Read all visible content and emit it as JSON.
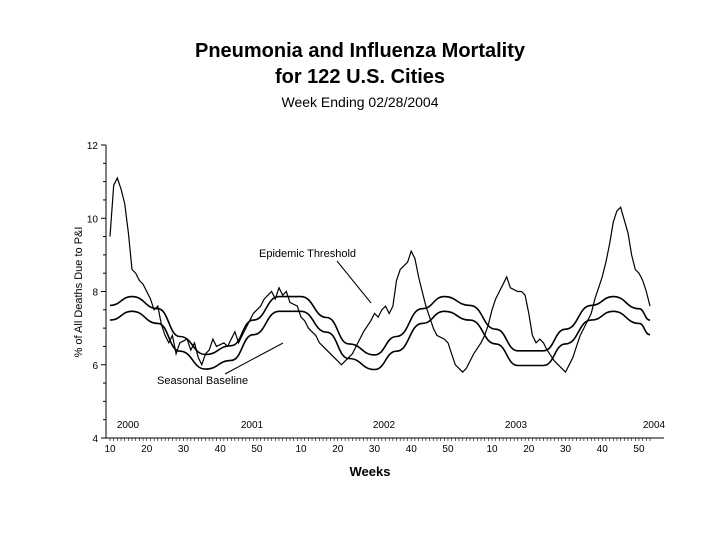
{
  "chart_data": {
    "type": "line",
    "title_line1": "Pneumonia and Influenza Mortality",
    "title_line2": "for 122 U.S. Cities",
    "subtitle": "Week Ending 02/28/2004",
    "xlabel": "Weeks",
    "ylabel": "% of All Deaths Due to P&I",
    "ylim": [
      4,
      12
    ],
    "y_ticks": [
      4,
      6,
      8,
      10,
      12
    ],
    "year_labels": [
      "2000",
      "2001",
      "2002",
      "2003",
      "2004"
    ],
    "week_ticks": [
      "10",
      "20",
      "30",
      "40",
      "50"
    ],
    "annotations": {
      "threshold": "Epidemic Threshold",
      "baseline": "Seasonal Baseline"
    },
    "series": [
      {
        "values": [
          [
            1,
            9.5
          ],
          [
            2,
            10.9
          ],
          [
            3,
            11.1
          ],
          [
            4,
            10.8
          ],
          [
            5,
            10.4
          ],
          [
            6,
            9.6
          ],
          [
            7,
            8.6
          ],
          [
            8,
            8.5
          ],
          [
            9,
            8.3
          ],
          [
            10,
            8.2
          ],
          [
            12,
            7.8
          ],
          [
            13,
            7.5
          ],
          [
            14,
            7.6
          ],
          [
            15,
            7.1
          ],
          [
            16,
            6.8
          ],
          [
            17,
            6.6
          ],
          [
            18,
            6.8
          ],
          [
            19,
            6.3
          ],
          [
            20,
            6.6
          ],
          [
            22,
            6.7
          ],
          [
            23,
            6.4
          ],
          [
            24,
            6.6
          ],
          [
            25,
            6.2
          ],
          [
            26,
            6.0
          ],
          [
            27,
            6.3
          ],
          [
            28,
            6.4
          ],
          [
            29,
            6.7
          ],
          [
            30,
            6.5
          ],
          [
            32,
            6.6
          ],
          [
            33,
            6.5
          ],
          [
            34,
            6.7
          ],
          [
            35,
            6.9
          ],
          [
            36,
            6.6
          ],
          [
            37,
            6.8
          ],
          [
            38,
            7.0
          ],
          [
            39,
            7.2
          ],
          [
            40,
            7.4
          ],
          [
            42,
            7.6
          ],
          [
            43,
            7.8
          ],
          [
            44,
            7.9
          ],
          [
            45,
            8.0
          ],
          [
            46,
            7.8
          ],
          [
            47,
            8.1
          ],
          [
            48,
            7.9
          ],
          [
            49,
            8.0
          ],
          [
            50,
            7.7
          ],
          [
            52,
            7.6
          ],
          [
            53,
            7.3
          ],
          [
            54,
            7.2
          ],
          [
            55,
            7.0
          ],
          [
            56,
            6.9
          ],
          [
            57,
            6.8
          ],
          [
            58,
            6.6
          ],
          [
            59,
            6.5
          ],
          [
            60,
            6.4
          ],
          [
            62,
            6.2
          ],
          [
            63,
            6.1
          ],
          [
            64,
            6.0
          ],
          [
            65,
            6.1
          ],
          [
            66,
            6.2
          ],
          [
            67,
            6.3
          ],
          [
            68,
            6.5
          ],
          [
            69,
            6.7
          ],
          [
            70,
            6.9
          ],
          [
            72,
            7.2
          ],
          [
            73,
            7.4
          ],
          [
            74,
            7.3
          ],
          [
            75,
            7.5
          ],
          [
            76,
            7.6
          ],
          [
            77,
            7.4
          ],
          [
            78,
            7.6
          ],
          [
            79,
            8.3
          ],
          [
            80,
            8.6
          ],
          [
            82,
            8.8
          ],
          [
            83,
            9.1
          ],
          [
            84,
            8.9
          ],
          [
            85,
            8.4
          ],
          [
            86,
            8.0
          ],
          [
            87,
            7.6
          ],
          [
            88,
            7.3
          ],
          [
            89,
            7.0
          ],
          [
            90,
            6.8
          ],
          [
            92,
            6.7
          ],
          [
            93,
            6.6
          ],
          [
            94,
            6.3
          ],
          [
            95,
            6.0
          ],
          [
            96,
            5.9
          ],
          [
            97,
            5.8
          ],
          [
            98,
            5.9
          ],
          [
            99,
            6.1
          ],
          [
            100,
            6.3
          ],
          [
            102,
            6.6
          ],
          [
            103,
            6.8
          ],
          [
            104,
            7.1
          ],
          [
            105,
            7.5
          ],
          [
            106,
            7.8
          ],
          [
            107,
            8.0
          ],
          [
            108,
            8.2
          ],
          [
            109,
            8.4
          ],
          [
            110,
            8.1
          ],
          [
            112,
            8.0
          ],
          [
            113,
            8.0
          ],
          [
            114,
            7.9
          ],
          [
            115,
            7.4
          ],
          [
            116,
            6.8
          ],
          [
            117,
            6.6
          ],
          [
            118,
            6.7
          ],
          [
            119,
            6.6
          ],
          [
            120,
            6.4
          ],
          [
            122,
            6.1
          ],
          [
            123,
            6.0
          ],
          [
            124,
            5.9
          ],
          [
            125,
            5.8
          ],
          [
            126,
            6.0
          ],
          [
            127,
            6.2
          ],
          [
            128,
            6.5
          ],
          [
            129,
            6.8
          ],
          [
            130,
            7.0
          ],
          [
            132,
            7.4
          ],
          [
            133,
            7.8
          ],
          [
            134,
            8.1
          ],
          [
            135,
            8.4
          ],
          [
            136,
            8.8
          ],
          [
            137,
            9.3
          ],
          [
            138,
            9.9
          ],
          [
            139,
            10.2
          ],
          [
            140,
            10.3
          ],
          [
            142,
            9.6
          ],
          [
            143,
            9.0
          ],
          [
            144,
            8.6
          ],
          [
            145,
            8.5
          ],
          [
            146,
            8.3
          ],
          [
            147,
            8.0
          ],
          [
            148,
            7.6
          ]
        ]
      },
      {
        "name": "Epidemic Threshold",
        "values": [
          [
            1,
            7.62
          ],
          [
            7,
            7.86
          ],
          [
            14,
            7.53
          ],
          [
            20,
            6.77
          ],
          [
            27,
            6.28
          ],
          [
            34,
            6.52
          ],
          [
            40,
            7.22
          ],
          [
            47,
            7.86
          ],
          [
            53,
            7.86
          ],
          [
            60,
            7.29
          ],
          [
            66,
            6.57
          ],
          [
            73,
            6.27
          ],
          [
            79,
            6.77
          ],
          [
            86,
            7.53
          ],
          [
            92,
            7.86
          ],
          [
            99,
            7.62
          ],
          [
            106,
            6.97
          ],
          [
            112,
            6.38
          ],
          [
            119,
            6.38
          ],
          [
            125,
            6.97
          ],
          [
            132,
            7.62
          ],
          [
            138,
            7.86
          ],
          [
            145,
            7.53
          ],
          [
            148,
            7.22
          ]
        ]
      },
      {
        "name": "Seasonal Baseline",
        "values": [
          [
            1,
            7.22
          ],
          [
            7,
            7.46
          ],
          [
            14,
            7.13
          ],
          [
            20,
            6.37
          ],
          [
            27,
            5.88
          ],
          [
            34,
            6.12
          ],
          [
            40,
            6.82
          ],
          [
            47,
            7.46
          ],
          [
            53,
            7.46
          ],
          [
            60,
            6.89
          ],
          [
            66,
            6.17
          ],
          [
            73,
            5.87
          ],
          [
            79,
            6.37
          ],
          [
            86,
            7.13
          ],
          [
            92,
            7.46
          ],
          [
            99,
            7.22
          ],
          [
            106,
            6.57
          ],
          [
            112,
            5.98
          ],
          [
            119,
            5.98
          ],
          [
            125,
            6.57
          ],
          [
            132,
            7.22
          ],
          [
            138,
            7.46
          ],
          [
            145,
            7.13
          ],
          [
            148,
            6.82
          ]
        ]
      }
    ]
  }
}
